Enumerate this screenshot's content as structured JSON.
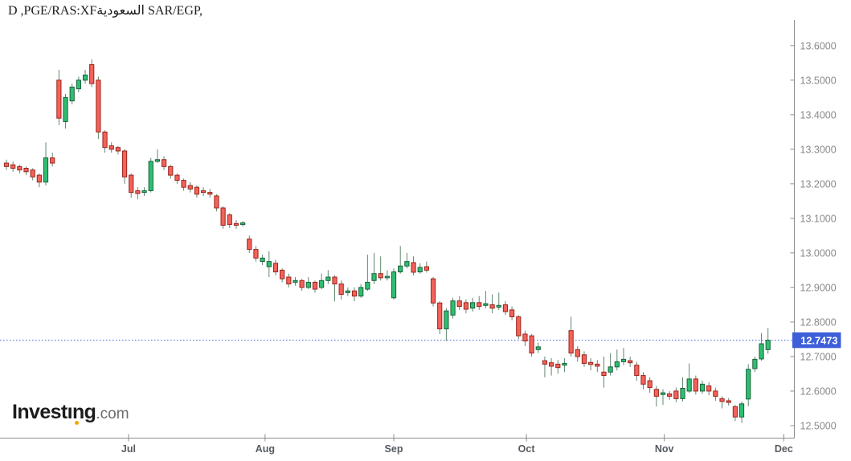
{
  "header": {
    "title_left": "D ,PGE/RAS:XF",
    "title_arabic": "السعودية",
    "title_right": " SAR/EGP,"
  },
  "watermark": {
    "main": "Investıng",
    "suffix": ".com",
    "dot_color": "#f7a600"
  },
  "price_axis": {
    "tick_values": [
      13.6,
      13.5,
      13.4,
      13.3,
      13.2,
      13.1,
      13.0,
      12.9,
      12.8,
      12.7,
      12.6,
      12.5
    ],
    "decimals": 4,
    "last_price_label": "12.7473"
  },
  "time_axis": {
    "ticks": [
      {
        "label": "Jul",
        "i": 18.6
      },
      {
        "label": "Aug",
        "i": 39.4
      },
      {
        "label": "Sep",
        "i": 59.0
      },
      {
        "label": "Oct",
        "i": 79.2
      },
      {
        "label": "Nov",
        "i": 100.2
      },
      {
        "label": "Dec",
        "i": 118.4
      }
    ]
  },
  "colors": {
    "up_fill": "#2fbe70",
    "up_border": "#19613a",
    "down_fill": "#f2635a",
    "down_border": "#9c241c",
    "wick": "#61876f",
    "price_line": "#3d5fd9",
    "badge_bg": "#3d5fd9",
    "badge_text": "#ffffff",
    "axis_line": "#8c8c8c",
    "axis_text": "#8a8a8a",
    "month_text": "#565b61"
  },
  "chart_data": {
    "type": "candlestick",
    "title": "D ,PGE/RAS:XFالسعودية SAR/EGP,",
    "interval": "D",
    "symbol": "SAR/EGP",
    "last_price": 12.7473,
    "grid": false,
    "legend_position": "none",
    "ylim": [
      12.465,
      13.667
    ],
    "xlabel": "",
    "ylabel": "",
    "x_tick_labels": [
      "Jul",
      "Aug",
      "Sep",
      "Oct",
      "Nov",
      "Dec"
    ],
    "ohlc": [
      [
        13.26,
        13.27,
        13.24,
        13.25
      ],
      [
        13.255,
        13.265,
        13.235,
        13.245
      ],
      [
        13.25,
        13.255,
        13.23,
        13.24
      ],
      [
        13.245,
        13.25,
        13.225,
        13.235
      ],
      [
        13.24,
        13.245,
        13.21,
        13.22
      ],
      [
        13.225,
        13.23,
        13.19,
        13.205
      ],
      [
        13.205,
        13.32,
        13.195,
        13.275
      ],
      [
        13.275,
        13.29,
        13.25,
        13.26
      ],
      [
        13.5,
        13.53,
        13.37,
        13.39
      ],
      [
        13.38,
        13.46,
        13.36,
        13.45
      ],
      [
        13.44,
        13.49,
        13.43,
        13.48
      ],
      [
        13.475,
        13.51,
        13.465,
        13.5
      ],
      [
        13.5,
        13.53,
        13.49,
        13.515
      ],
      [
        13.545,
        13.56,
        13.48,
        13.49
      ],
      [
        13.5,
        13.51,
        13.33,
        13.35
      ],
      [
        13.35,
        13.355,
        13.29,
        13.305
      ],
      [
        13.31,
        13.32,
        13.29,
        13.3
      ],
      [
        13.305,
        13.31,
        13.285,
        13.295
      ],
      [
        13.295,
        13.3,
        13.2,
        13.22
      ],
      [
        13.225,
        13.23,
        13.16,
        13.175
      ],
      [
        13.18,
        13.19,
        13.155,
        13.172
      ],
      [
        13.175,
        13.19,
        13.165,
        13.18
      ],
      [
        13.18,
        13.275,
        13.175,
        13.265
      ],
      [
        13.265,
        13.3,
        13.26,
        13.27
      ],
      [
        13.27,
        13.28,
        13.24,
        13.25
      ],
      [
        13.25,
        13.255,
        13.215,
        13.225
      ],
      [
        13.225,
        13.23,
        13.2,
        13.21
      ],
      [
        13.21,
        13.215,
        13.18,
        13.19
      ],
      [
        13.195,
        13.205,
        13.175,
        13.185
      ],
      [
        13.19,
        13.195,
        13.16,
        13.17
      ],
      [
        13.18,
        13.19,
        13.165,
        13.175
      ],
      [
        13.175,
        13.185,
        13.16,
        13.17
      ],
      [
        13.165,
        13.17,
        13.12,
        13.13
      ],
      [
        13.13,
        13.135,
        13.07,
        13.08
      ],
      [
        13.11,
        13.115,
        13.072,
        13.082
      ],
      [
        13.085,
        13.095,
        13.07,
        13.08
      ],
      [
        13.082,
        13.092,
        13.077,
        13.087
      ],
      [
        13.04,
        13.05,
        13.0,
        13.01
      ],
      [
        13.01,
        13.02,
        12.975,
        12.985
      ],
      [
        12.975,
        12.995,
        12.965,
        12.985
      ],
      [
        12.96,
        13.005,
        12.93,
        12.975
      ],
      [
        12.97,
        12.98,
        12.935,
        12.945
      ],
      [
        12.95,
        12.955,
        12.915,
        12.925
      ],
      [
        12.93,
        12.94,
        12.9,
        12.91
      ],
      [
        12.915,
        12.93,
        12.905,
        12.92
      ],
      [
        12.92,
        12.925,
        12.89,
        12.9
      ],
      [
        12.9,
        12.93,
        12.895,
        12.915
      ],
      [
        12.915,
        12.92,
        12.885,
        12.895
      ],
      [
        12.9,
        12.94,
        12.895,
        12.92
      ],
      [
        12.92,
        12.95,
        12.91,
        12.93
      ],
      [
        12.93,
        12.935,
        12.86,
        12.91
      ],
      [
        12.91,
        12.92,
        12.865,
        12.88
      ],
      [
        12.885,
        12.9,
        12.875,
        12.89
      ],
      [
        12.89,
        12.9,
        12.86,
        12.875
      ],
      [
        12.875,
        12.91,
        12.87,
        12.9
      ],
      [
        12.895,
        12.995,
        12.89,
        12.915
      ],
      [
        12.92,
        13.0,
        12.91,
        12.94
      ],
      [
        12.94,
        12.99,
        12.92,
        12.928
      ],
      [
        12.928,
        12.95,
        12.92,
        12.932
      ],
      [
        12.87,
        12.955,
        12.865,
        12.945
      ],
      [
        12.945,
        13.02,
        12.94,
        12.962
      ],
      [
        12.962,
        13.0,
        12.955,
        12.975
      ],
      [
        12.972,
        12.99,
        12.935,
        12.944
      ],
      [
        12.945,
        12.97,
        12.94,
        12.958
      ],
      [
        12.96,
        12.975,
        12.943,
        12.95
      ],
      [
        12.925,
        12.93,
        12.845,
        12.855
      ],
      [
        12.855,
        12.86,
        12.765,
        12.78
      ],
      [
        12.78,
        12.84,
        12.745,
        12.832
      ],
      [
        12.82,
        12.87,
        12.81,
        12.861
      ],
      [
        12.861,
        12.875,
        12.835,
        12.845
      ],
      [
        12.856,
        12.865,
        12.825,
        12.837
      ],
      [
        12.84,
        12.87,
        12.83,
        12.856
      ],
      [
        12.856,
        12.875,
        12.835,
        12.845
      ],
      [
        12.848,
        12.89,
        12.84,
        12.853
      ],
      [
        12.85,
        12.88,
        12.825,
        12.84
      ],
      [
        12.843,
        12.885,
        12.835,
        12.848
      ],
      [
        12.85,
        12.86,
        12.82,
        12.83
      ],
      [
        12.835,
        12.845,
        12.805,
        12.815
      ],
      [
        12.815,
        12.82,
        12.75,
        12.76
      ],
      [
        12.765,
        12.775,
        12.73,
        12.745
      ],
      [
        12.76,
        12.765,
        12.7,
        12.71
      ],
      [
        12.72,
        12.74,
        12.71,
        12.728
      ],
      [
        12.688,
        12.7,
        12.64,
        12.678
      ],
      [
        12.682,
        12.695,
        12.645,
        12.672
      ],
      [
        12.678,
        12.69,
        12.65,
        12.668
      ],
      [
        12.675,
        12.695,
        12.655,
        12.68
      ],
      [
        12.775,
        12.815,
        12.7,
        12.71
      ],
      [
        12.72,
        12.73,
        12.685,
        12.7
      ],
      [
        12.705,
        12.715,
        12.67,
        12.68
      ],
      [
        12.683,
        12.695,
        12.66,
        12.677
      ],
      [
        12.678,
        12.69,
        12.655,
        12.672
      ],
      [
        12.655,
        12.7,
        12.61,
        12.645
      ],
      [
        12.655,
        12.71,
        12.645,
        12.67
      ],
      [
        12.67,
        12.72,
        12.66,
        12.685
      ],
      [
        12.685,
        12.725,
        12.675,
        12.692
      ],
      [
        12.688,
        12.7,
        12.67,
        12.682
      ],
      [
        12.675,
        12.685,
        12.63,
        12.645
      ],
      [
        12.645,
        12.655,
        12.605,
        12.62
      ],
      [
        12.63,
        12.64,
        12.595,
        12.61
      ],
      [
        12.605,
        12.615,
        12.555,
        12.585
      ],
      [
        12.59,
        12.605,
        12.56,
        12.595
      ],
      [
        12.592,
        12.6,
        12.575,
        12.585
      ],
      [
        12.6,
        12.61,
        12.568,
        12.578
      ],
      [
        12.578,
        12.64,
        12.57,
        12.608
      ],
      [
        12.6,
        12.68,
        12.595,
        12.635
      ],
      [
        12.635,
        12.645,
        12.59,
        12.6
      ],
      [
        12.6,
        12.63,
        12.592,
        12.62
      ],
      [
        12.615,
        12.625,
        12.588,
        12.6
      ],
      [
        12.6,
        12.61,
        12.572,
        12.585
      ],
      [
        12.578,
        12.585,
        12.55,
        12.57
      ],
      [
        12.572,
        12.58,
        12.558,
        12.567
      ],
      [
        12.555,
        12.56,
        12.513,
        12.525
      ],
      [
        12.525,
        12.57,
        12.508,
        12.563
      ],
      [
        12.577,
        12.678,
        12.556,
        12.663
      ],
      [
        12.665,
        12.7,
        12.655,
        12.692
      ],
      [
        12.693,
        12.768,
        12.688,
        12.737
      ],
      [
        12.72,
        12.783,
        12.708,
        12.7473
      ]
    ]
  }
}
